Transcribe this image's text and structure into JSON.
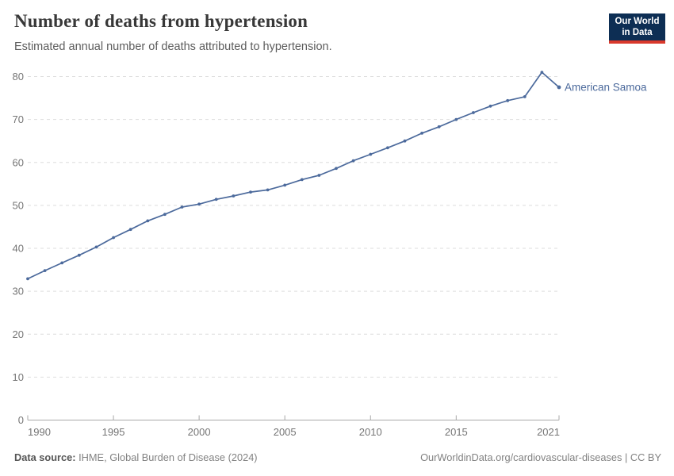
{
  "header": {
    "title": "Number of deaths from hypertension",
    "subtitle": "Estimated annual number of deaths attributed to hypertension."
  },
  "logo": {
    "line1": "Our World",
    "line2": "in Data"
  },
  "chart_data": {
    "type": "line",
    "title": "Number of deaths from hypertension",
    "subtitle": "Estimated annual number of deaths attributed to hypertension.",
    "xlabel": "",
    "ylabel": "",
    "xlim": [
      1990,
      2021
    ],
    "ylim": [
      0,
      80
    ],
    "xticks": [
      1990,
      1995,
      2000,
      2005,
      2010,
      2015,
      2021
    ],
    "yticks": [
      0,
      10,
      20,
      30,
      40,
      50,
      60,
      70,
      80
    ],
    "grid": "horizontal-dashed",
    "legend": "end-of-line-label",
    "series": [
      {
        "name": "American Samoa",
        "color": "#4c6a9c",
        "x": [
          1990,
          1991,
          1992,
          1993,
          1994,
          1995,
          1996,
          1997,
          1998,
          1999,
          2000,
          2001,
          2002,
          2003,
          2004,
          2005,
          2006,
          2007,
          2008,
          2009,
          2010,
          2011,
          2012,
          2013,
          2014,
          2015,
          2016,
          2017,
          2018,
          2019,
          2020,
          2021
        ],
        "values": [
          32.9,
          34.8,
          36.6,
          38.4,
          40.3,
          42.5,
          44.4,
          46.4,
          47.9,
          49.6,
          50.3,
          51.4,
          52.2,
          53.1,
          53.6,
          54.7,
          56.0,
          57.0,
          58.6,
          60.4,
          61.9,
          63.4,
          65.0,
          66.8,
          68.3,
          70.0,
          71.6,
          73.1,
          74.4,
          75.3,
          81.0,
          77.5
        ]
      }
    ],
    "colors": {
      "line": "#4c6a9c",
      "grid": "#dedede",
      "axis": "#a8a8a8",
      "tick_text": "#757575"
    }
  },
  "footer": {
    "source_label": "Data source:",
    "source_value": "IHME, Global Burden of Disease (2024)",
    "credit": "OurWorldinData.org/cardiovascular-diseases | CC BY"
  }
}
